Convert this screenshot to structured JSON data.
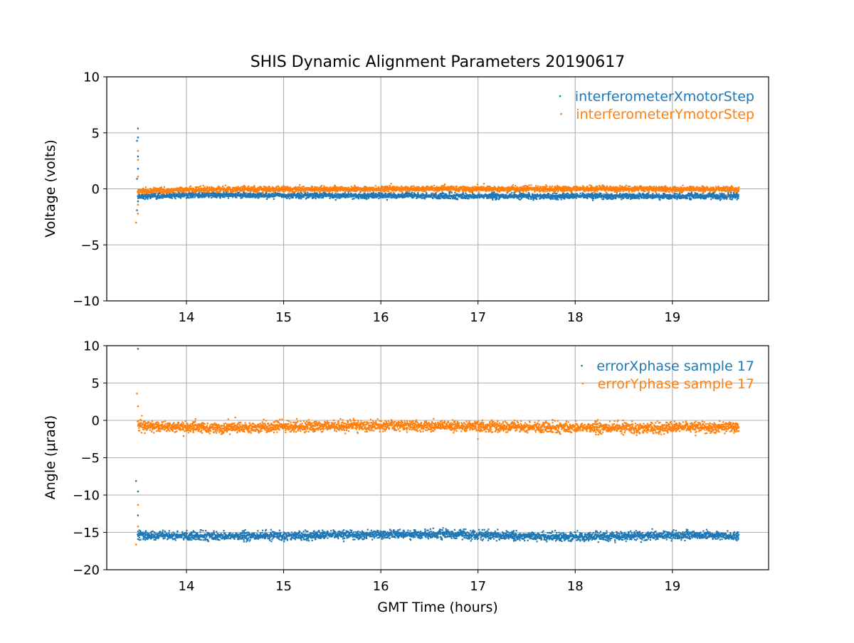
{
  "chart_data": [
    {
      "type": "scatter",
      "title": "SHIS Dynamic Alignment Parameters 20190617",
      "xlabel": "",
      "ylabel": "Voltage (volts)",
      "xlim": [
        13.18,
        19.99
      ],
      "ylim": [
        -10,
        10
      ],
      "xticks": [
        14,
        15,
        16,
        17,
        18,
        19
      ],
      "yticks": [
        -10,
        -5,
        0,
        5,
        10
      ],
      "grid": true,
      "legend": "top-right",
      "series": [
        {
          "name": "interferometerXmotorStep",
          "color": "#1f77b4",
          "x_range": [
            13.5,
            19.68
          ],
          "baseline": -0.6,
          "noise": 0.12,
          "trend": [
            [
              13.5,
              -0.65
            ],
            [
              14.0,
              -0.55
            ],
            [
              16.0,
              -0.6
            ],
            [
              17.0,
              -0.65
            ],
            [
              19.68,
              -0.65
            ]
          ],
          "outliers": [
            [
              13.49,
              4.3
            ],
            [
              13.5,
              5.4
            ],
            [
              13.5,
              4.6
            ],
            [
              13.5,
              2.9
            ],
            [
              13.5,
              1.8
            ],
            [
              13.49,
              -1.9
            ],
            [
              13.5,
              -1.1
            ],
            [
              13.49,
              0.9
            ]
          ]
        },
        {
          "name": "interferometerYmotorStep",
          "color": "#ff7f0e",
          "x_range": [
            13.5,
            19.68
          ],
          "baseline": 0.0,
          "noise": 0.12,
          "trend": [
            [
              13.5,
              -0.2
            ],
            [
              14.0,
              -0.05
            ],
            [
              16.0,
              0.0
            ],
            [
              16.5,
              0.02
            ],
            [
              19.68,
              -0.02
            ]
          ],
          "outliers": [
            [
              13.48,
              -3.0
            ],
            [
              13.5,
              -2.2
            ],
            [
              13.5,
              3.4
            ],
            [
              13.5,
              2.6
            ],
            [
              13.5,
              1.1
            ],
            [
              13.5,
              -1.4
            ]
          ]
        }
      ]
    },
    {
      "type": "scatter",
      "title": "",
      "xlabel": "GMT Time (hours)",
      "ylabel": "Angle (μrad)",
      "xlim": [
        13.18,
        19.99
      ],
      "ylim": [
        -20,
        10
      ],
      "xticks": [
        14,
        15,
        16,
        17,
        18,
        19
      ],
      "yticks": [
        -20,
        -15,
        -10,
        -5,
        0,
        5,
        10
      ],
      "grid": true,
      "legend": "top-right",
      "series": [
        {
          "name": "errorXphase sample 17",
          "color": "#1f77b4",
          "x_range": [
            13.5,
            19.68
          ],
          "baseline": -15.5,
          "noise": 0.28,
          "trend": [
            [
              13.5,
              -15.4
            ],
            [
              14.5,
              -15.5
            ],
            [
              16.5,
              -15.2
            ],
            [
              18.0,
              -15.6
            ],
            [
              19.3,
              -15.3
            ],
            [
              19.68,
              -15.5
            ]
          ],
          "outliers": [
            [
              13.48,
              -8.1
            ],
            [
              13.5,
              -9.5
            ],
            [
              13.5,
              -12.7
            ],
            [
              13.5,
              9.6
            ]
          ]
        },
        {
          "name": "errorYphase sample 17",
          "color": "#ff7f0e",
          "x_range": [
            13.5,
            19.68
          ],
          "baseline": -0.9,
          "noise": 0.35,
          "trend": [
            [
              13.5,
              -0.7
            ],
            [
              14.2,
              -1.0
            ],
            [
              15.0,
              -0.8
            ],
            [
              16.5,
              -0.7
            ],
            [
              17.5,
              -0.9
            ],
            [
              18.5,
              -1.0
            ],
            [
              19.68,
              -0.9
            ]
          ],
          "outliers": [
            [
              13.49,
              3.6
            ],
            [
              13.5,
              1.9
            ],
            [
              13.5,
              -11.3
            ],
            [
              13.48,
              -16.6
            ],
            [
              13.5,
              -14.2
            ]
          ]
        }
      ]
    }
  ]
}
